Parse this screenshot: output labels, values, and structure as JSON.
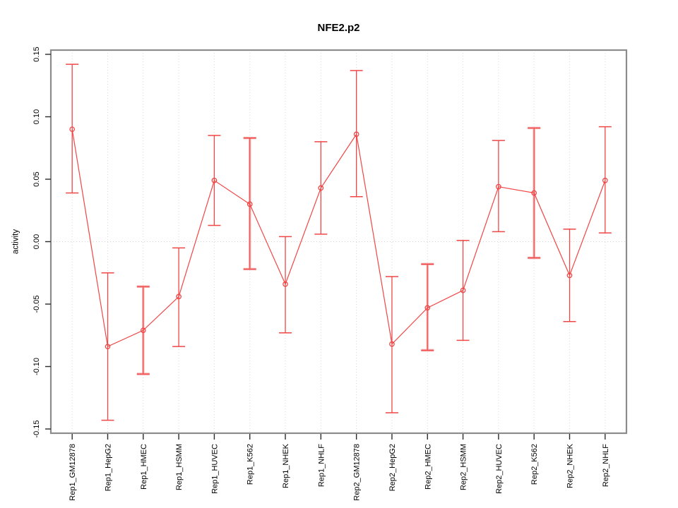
{
  "window": {
    "title": "NFE2.p2"
  },
  "chart_data": {
    "type": "line",
    "title": "NFE2.p2",
    "xlabel": "",
    "ylabel": "activity",
    "ylim": [
      -0.154,
      0.154
    ],
    "yticks": [
      0.15,
      0.1,
      0.05,
      0.0,
      -0.05,
      -0.1,
      -0.15
    ],
    "ytick_labels": [
      "0.15",
      "0.10",
      "0.05",
      "0.00",
      "-0.05",
      "-0.10",
      "-0.15"
    ],
    "legend": "none",
    "grid": "dotted vertical line at each category and dotted horizontal line at y=0",
    "point_marker": "open-circle",
    "error_bars": "caps at both ends",
    "categories": [
      "Rep1_GM12878",
      "Rep1_HepG2",
      "Rep1_HMEC",
      "Rep1_HSMM",
      "Rep1_HUVEC",
      "Rep1_K562",
      "Rep1_NHEK",
      "Rep1_NHLF",
      "Rep2_GM12878",
      "Rep2_HepG2",
      "Rep2_HMEC",
      "Rep2_HSMM",
      "Rep2_HUVEC",
      "Rep2_K562",
      "Rep2_NHEK",
      "Rep2_NHLF"
    ],
    "series": [
      {
        "name": "activity",
        "values": [
          0.09,
          -0.084,
          -0.071,
          -0.044,
          0.049,
          0.03,
          -0.034,
          0.043,
          0.086,
          -0.082,
          -0.053,
          -0.039,
          0.044,
          0.039,
          -0.027,
          0.049
        ],
        "ci_low": [
          0.039,
          -0.143,
          -0.106,
          -0.084,
          0.013,
          -0.022,
          -0.073,
          0.006,
          0.036,
          -0.137,
          -0.087,
          -0.079,
          0.008,
          -0.013,
          -0.064,
          0.007
        ],
        "ci_high": [
          0.142,
          -0.025,
          -0.036,
          -0.005,
          0.085,
          0.083,
          0.004,
          0.08,
          0.137,
          -0.028,
          -0.018,
          0.001,
          0.081,
          0.091,
          0.01,
          0.092
        ],
        "wide_bar": [
          false,
          false,
          true,
          false,
          false,
          true,
          false,
          false,
          false,
          false,
          true,
          false,
          false,
          true,
          false,
          false
        ]
      }
    ],
    "colors": {
      "series": "#f04646",
      "error_bar_light": "#f5a6a6",
      "plot_border": "#8c8c8c",
      "gridline": "#d9d9d9",
      "zero_line": "#d2d2d2",
      "tick": "#2b2b2b",
      "text": "#000000",
      "background": "#ffffff"
    }
  }
}
